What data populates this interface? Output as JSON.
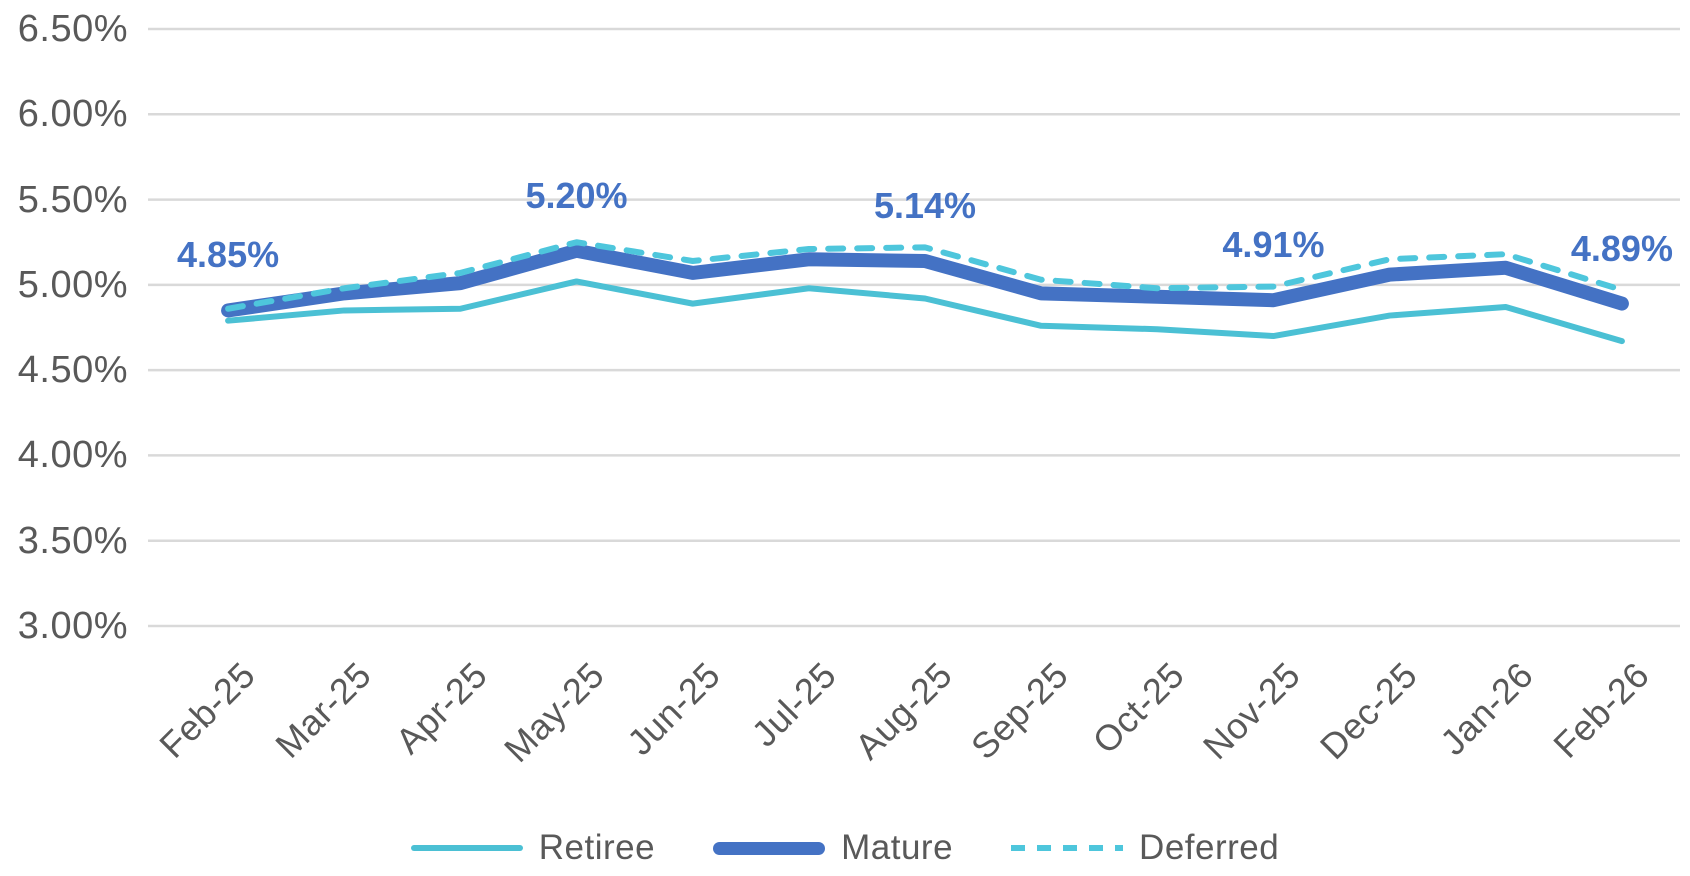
{
  "chart_data": {
    "type": "line",
    "title": "",
    "xlabel": "",
    "ylabel": "",
    "categories": [
      "Feb-25",
      "Mar-25",
      "Apr-25",
      "May-25",
      "Jun-25",
      "Jul-25",
      "Aug-25",
      "Sep-25",
      "Oct-25",
      "Nov-25",
      "Dec-25",
      "Jan-26",
      "Feb-26"
    ],
    "series": [
      {
        "name": "Retiree",
        "style": "solid-thin",
        "color": "#4BC0D4",
        "values": [
          4.79,
          4.85,
          4.86,
          5.02,
          4.89,
          4.98,
          4.92,
          4.76,
          4.74,
          4.7,
          4.82,
          4.87,
          4.67
        ]
      },
      {
        "name": "Mature",
        "style": "solid-thick",
        "color": "#4472C4",
        "values": [
          4.85,
          4.95,
          5.01,
          5.2,
          5.07,
          5.15,
          5.14,
          4.95,
          4.93,
          4.91,
          5.06,
          5.1,
          4.89
        ]
      },
      {
        "name": "Deferred",
        "style": "dashed",
        "color": "#4EC6DC",
        "values": [
          4.86,
          4.98,
          5.07,
          5.25,
          5.14,
          5.21,
          5.22,
          5.03,
          4.98,
          4.99,
          5.15,
          5.18,
          4.97
        ]
      }
    ],
    "data_labels": [
      {
        "series": "Mature",
        "category": "Feb-25",
        "index": 0,
        "text": "4.85%"
      },
      {
        "series": "Mature",
        "category": "May-25",
        "index": 3,
        "text": "5.20%"
      },
      {
        "series": "Mature",
        "category": "Aug-25",
        "index": 6,
        "text": "5.14%"
      },
      {
        "series": "Mature",
        "category": "Nov-25",
        "index": 9,
        "text": "4.91%"
      },
      {
        "series": "Mature",
        "category": "Feb-26",
        "index": 12,
        "text": "4.89%"
      }
    ],
    "y_ticks": [
      "6.50%",
      "6.00%",
      "5.50%",
      "5.00%",
      "4.50%",
      "4.00%",
      "3.50%",
      "3.00%"
    ],
    "ylim": [
      3.0,
      6.5
    ],
    "grid": true,
    "legend_position": "bottom",
    "colors": {
      "axis_text": "#595959",
      "gridline": "#D9D9D9",
      "data_label": "#4472C4"
    }
  }
}
